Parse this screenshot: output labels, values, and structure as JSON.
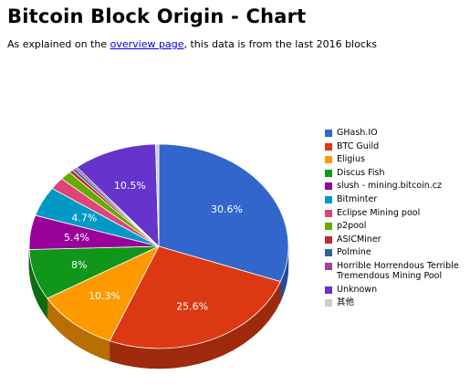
{
  "page": {
    "title": "Bitcoin Block Origin - Chart",
    "intro_before": "As explained on the ",
    "intro_link": "overview page",
    "intro_after": ", this data is from the last 2016 blocks"
  },
  "chart_data": {
    "type": "pie",
    "title": "",
    "series": [
      {
        "name": "GHash.IO",
        "value": 30.6,
        "label": "30.6%",
        "color": "#3366cc"
      },
      {
        "name": "BTC Guild",
        "value": 25.6,
        "label": "25.6%",
        "color": "#dc3912"
      },
      {
        "name": "Eligius",
        "value": 10.3,
        "label": "10.3%",
        "color": "#ff9900"
      },
      {
        "name": "Discus Fish",
        "value": 8.0,
        "label": "8%",
        "color": "#109618"
      },
      {
        "name": "slush - mining.bitcoin.cz",
        "value": 5.4,
        "label": "5.4%",
        "color": "#990099"
      },
      {
        "name": "Bitminter",
        "value": 4.7,
        "label": "4.7%",
        "color": "#0099c6"
      },
      {
        "name": "Eclipse Mining pool",
        "value": 1.9,
        "label": "",
        "color": "#dd4477"
      },
      {
        "name": "p2pool",
        "value": 1.4,
        "label": "",
        "color": "#66aa00"
      },
      {
        "name": "ASICMiner",
        "value": 0.5,
        "label": "",
        "color": "#b82e2e"
      },
      {
        "name": "Polmine",
        "value": 0.4,
        "label": "",
        "color": "#316395"
      },
      {
        "name": "Horrible Horrendous Terrible Tremendous Mining Pool",
        "value": 0.3,
        "label": "",
        "color": "#994499"
      },
      {
        "name": "Unknown",
        "value": 10.5,
        "label": "10.5%",
        "color": "#6633cc"
      },
      {
        "name": "其他",
        "value": 0.4,
        "label": "",
        "color": "#cccccc"
      }
    ],
    "legend_position": "right",
    "style": "3d"
  }
}
